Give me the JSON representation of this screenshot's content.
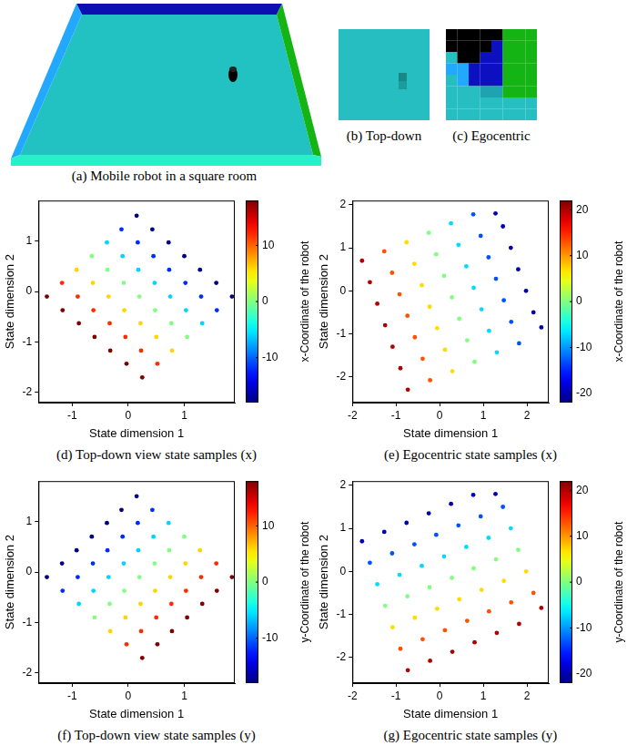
{
  "images": [
    {
      "caption": "(a) Mobile robot in a square room"
    },
    {
      "caption": "(b) Top-down"
    },
    {
      "caption": "(c) Egocentric"
    }
  ],
  "chart_data": [
    {
      "type": "scatter",
      "caption": "(d) Top-down view state samples (x)",
      "xlabel": "State dimension 1",
      "ylabel": "State dimension 2",
      "xlim": [
        -1.6,
        1.9
      ],
      "ylim": [
        -2.2,
        1.8
      ],
      "xticks": [
        -1,
        0,
        1
      ],
      "yticks": [
        -2,
        -1,
        0,
        1
      ],
      "grid": false,
      "marker": "circle",
      "x": [
        0.15,
        0.43,
        0.72,
        1.0,
        1.28,
        1.57,
        1.85,
        -0.12,
        0.17,
        0.45,
        0.73,
        1.02,
        1.3,
        1.58,
        -0.38,
        -0.1,
        0.18,
        0.47,
        0.75,
        1.03,
        1.32,
        -0.65,
        -0.37,
        -0.08,
        0.2,
        0.48,
        0.77,
        1.05,
        -0.92,
        -0.63,
        -0.35,
        -0.07,
        0.22,
        0.5,
        0.78,
        -1.18,
        -0.9,
        -0.62,
        -0.33,
        -0.05,
        0.23,
        0.52,
        -1.45,
        -1.17,
        -0.88,
        -0.6,
        -0.32,
        -0.03,
        0.25
      ],
      "y": [
        1.5,
        1.23,
        0.97,
        0.7,
        0.43,
        0.17,
        -0.1,
        1.23,
        0.97,
        0.7,
        0.43,
        0.17,
        -0.1,
        -0.37,
        0.97,
        0.7,
        0.43,
        0.17,
        -0.1,
        -0.37,
        -0.63,
        0.7,
        0.43,
        0.17,
        -0.1,
        -0.37,
        -0.63,
        -0.9,
        0.43,
        0.17,
        -0.1,
        -0.37,
        -0.63,
        -0.9,
        -1.17,
        0.17,
        -0.1,
        -0.37,
        -0.63,
        -0.9,
        -1.17,
        -1.43,
        -0.1,
        -0.37,
        -0.63,
        -0.9,
        -1.17,
        -1.43,
        -1.7
      ],
      "color_values": [
        -18,
        -18,
        -18,
        -18,
        -18,
        -18,
        -18,
        -12,
        -12,
        -12,
        -12,
        -12,
        -12,
        -12,
        -6,
        -6,
        -6,
        -6,
        -6,
        -6,
        -6,
        0,
        0,
        0,
        0,
        0,
        0,
        0,
        6,
        6,
        6,
        6,
        6,
        6,
        6,
        12,
        12,
        12,
        12,
        12,
        12,
        12,
        18,
        18,
        18,
        18,
        18,
        18,
        18
      ],
      "colorbar_label": "x-Coordinate of the robot",
      "colorbar_lim": [
        -18,
        18
      ],
      "colorbar_ticks": [
        -10,
        0,
        10
      ]
    },
    {
      "type": "scatter",
      "caption": "(e) Egocentric state samples (x)",
      "xlabel": "State dimension 1",
      "ylabel": "State dimension 2",
      "xlim": [
        -2,
        2.5
      ],
      "ylim": [
        -2.6,
        2.1
      ],
      "xticks": [
        -2,
        -1,
        0,
        1,
        2
      ],
      "yticks": [
        -2,
        -1,
        0,
        1,
        2
      ],
      "grid": false,
      "marker": "circle",
      "x": [
        1.28,
        1.45,
        1.63,
        1.8,
        1.98,
        2.15,
        2.33,
        0.77,
        0.94,
        1.12,
        1.29,
        1.47,
        1.64,
        1.82,
        0.26,
        0.43,
        0.61,
        0.78,
        0.96,
        1.13,
        1.31,
        -0.25,
        -0.08,
        0.1,
        0.28,
        0.45,
        0.63,
        0.8,
        -0.76,
        -0.58,
        -0.41,
        -0.23,
        -0.06,
        0.12,
        0.29,
        -1.27,
        -1.09,
        -0.92,
        -0.74,
        -0.57,
        -0.39,
        -0.22,
        -1.78,
        -1.6,
        -1.43,
        -1.25,
        -1.08,
        -0.9,
        -0.73
      ],
      "y": [
        1.8,
        1.5,
        1.0,
        0.5,
        0.0,
        -0.5,
        -0.85,
        1.78,
        1.28,
        0.78,
        0.28,
        -0.22,
        -0.72,
        -1.22,
        1.57,
        1.07,
        0.57,
        0.07,
        -0.43,
        -0.93,
        -1.43,
        1.35,
        0.85,
        0.35,
        -0.15,
        -0.65,
        -1.15,
        -1.65,
        1.13,
        0.63,
        0.13,
        -0.37,
        -0.87,
        -1.37,
        -1.87,
        0.92,
        0.42,
        -0.08,
        -0.58,
        -1.08,
        -1.58,
        -2.08,
        0.7,
        0.2,
        -0.3,
        -0.8,
        -1.3,
        -1.8,
        -2.3
      ],
      "color_values": [
        -20,
        -20,
        -20,
        -20,
        -20,
        -20,
        -20,
        -13,
        -13,
        -13,
        -13,
        -13,
        -13,
        -13,
        -7,
        -7,
        -7,
        -7,
        -7,
        -7,
        -7,
        0,
        0,
        0,
        0,
        0,
        0,
        0,
        7,
        7,
        7,
        7,
        7,
        7,
        7,
        13,
        13,
        13,
        13,
        13,
        13,
        13,
        20,
        20,
        20,
        20,
        20,
        20,
        20
      ],
      "colorbar_label": "x-Coordinate of the robot",
      "colorbar_lim": [
        -22,
        22
      ],
      "colorbar_ticks": [
        -20,
        -10,
        0,
        10,
        20
      ]
    },
    {
      "type": "scatter",
      "caption": "(f) Top-down view state samples (y)",
      "xlabel": "State dimension 1",
      "ylabel": "State dimension 2",
      "xlim": [
        -1.6,
        1.9
      ],
      "ylim": [
        -2.2,
        1.8
      ],
      "xticks": [
        -1,
        0,
        1
      ],
      "yticks": [
        -2,
        -1,
        0,
        1
      ],
      "grid": false,
      "marker": "circle",
      "x": [
        0.15,
        0.43,
        0.72,
        1.0,
        1.28,
        1.57,
        1.85,
        -0.12,
        0.17,
        0.45,
        0.73,
        1.02,
        1.3,
        1.58,
        -0.38,
        -0.1,
        0.18,
        0.47,
        0.75,
        1.03,
        1.32,
        -0.65,
        -0.37,
        -0.08,
        0.2,
        0.48,
        0.77,
        1.05,
        -0.92,
        -0.63,
        -0.35,
        -0.07,
        0.22,
        0.5,
        0.78,
        -1.18,
        -0.9,
        -0.62,
        -0.33,
        -0.05,
        0.23,
        0.52,
        -1.45,
        -1.17,
        -0.88,
        -0.6,
        -0.32,
        -0.03,
        0.25
      ],
      "y": [
        1.5,
        1.23,
        0.97,
        0.7,
        0.43,
        0.17,
        -0.1,
        1.23,
        0.97,
        0.7,
        0.43,
        0.17,
        -0.1,
        -0.37,
        0.97,
        0.7,
        0.43,
        0.17,
        -0.1,
        -0.37,
        -0.63,
        0.7,
        0.43,
        0.17,
        -0.1,
        -0.37,
        -0.63,
        -0.9,
        0.43,
        0.17,
        -0.1,
        -0.37,
        -0.63,
        -0.9,
        -1.17,
        0.17,
        -0.1,
        -0.37,
        -0.63,
        -0.9,
        -1.17,
        -1.43,
        -0.1,
        -0.37,
        -0.63,
        -0.9,
        -1.17,
        -1.43,
        -1.7
      ],
      "color_values": [
        -18,
        -12,
        -6,
        0,
        6,
        12,
        18,
        -18,
        -12,
        -6,
        0,
        6,
        12,
        18,
        -18,
        -12,
        -6,
        0,
        6,
        12,
        18,
        -18,
        -12,
        -6,
        0,
        6,
        12,
        18,
        -18,
        -12,
        -6,
        0,
        6,
        12,
        18,
        -18,
        -12,
        -6,
        0,
        6,
        12,
        18,
        -18,
        -12,
        -6,
        0,
        6,
        12,
        18
      ],
      "colorbar_label": "y-Coordinate of the robot",
      "colorbar_lim": [
        -18,
        18
      ],
      "colorbar_ticks": [
        -10,
        0,
        10
      ]
    },
    {
      "type": "scatter",
      "caption": "(g) Egocentric state samples (y)",
      "xlabel": "State dimension 1",
      "ylabel": "State dimension 2",
      "xlim": [
        -2,
        2.5
      ],
      "ylim": [
        -2.6,
        2.1
      ],
      "xticks": [
        -2,
        -1,
        0,
        1,
        2
      ],
      "yticks": [
        -2,
        -1,
        0,
        1,
        2
      ],
      "grid": false,
      "marker": "circle",
      "x": [
        1.28,
        1.45,
        1.63,
        1.8,
        1.98,
        2.15,
        2.33,
        0.77,
        0.94,
        1.12,
        1.29,
        1.47,
        1.64,
        1.82,
        0.26,
        0.43,
        0.61,
        0.78,
        0.96,
        1.13,
        1.31,
        -0.25,
        -0.08,
        0.1,
        0.28,
        0.45,
        0.63,
        0.8,
        -0.76,
        -0.58,
        -0.41,
        -0.23,
        -0.06,
        0.12,
        0.29,
        -1.27,
        -1.09,
        -0.92,
        -0.74,
        -0.57,
        -0.39,
        -0.22,
        -1.78,
        -1.6,
        -1.43,
        -1.25,
        -1.08,
        -0.9,
        -0.73
      ],
      "y": [
        1.8,
        1.5,
        1.0,
        0.5,
        0.0,
        -0.5,
        -0.85,
        1.78,
        1.28,
        0.78,
        0.28,
        -0.22,
        -0.72,
        -1.22,
        1.57,
        1.07,
        0.57,
        0.07,
        -0.43,
        -0.93,
        -1.43,
        1.35,
        0.85,
        0.35,
        -0.15,
        -0.65,
        -1.15,
        -1.65,
        1.13,
        0.63,
        0.13,
        -0.37,
        -0.87,
        -1.37,
        -1.87,
        0.92,
        0.42,
        -0.08,
        -0.58,
        -1.08,
        -1.58,
        -2.08,
        0.7,
        0.2,
        -0.3,
        -0.8,
        -1.3,
        -1.8,
        -2.3
      ],
      "color_values": [
        -20,
        -13,
        -7,
        0,
        7,
        13,
        20,
        -20,
        -13,
        -7,
        0,
        7,
        13,
        20,
        -20,
        -13,
        -7,
        0,
        7,
        13,
        20,
        -20,
        -13,
        -7,
        0,
        7,
        13,
        20,
        -20,
        -13,
        -7,
        0,
        7,
        13,
        20,
        -20,
        -13,
        -7,
        0,
        7,
        13,
        20,
        -20,
        -13,
        -7,
        0,
        7,
        13,
        20
      ],
      "colorbar_label": "y-Coordinate of the robot",
      "colorbar_lim": [
        -22,
        22
      ],
      "colorbar_ticks": [
        -20,
        -10,
        0,
        10,
        20
      ]
    }
  ]
}
